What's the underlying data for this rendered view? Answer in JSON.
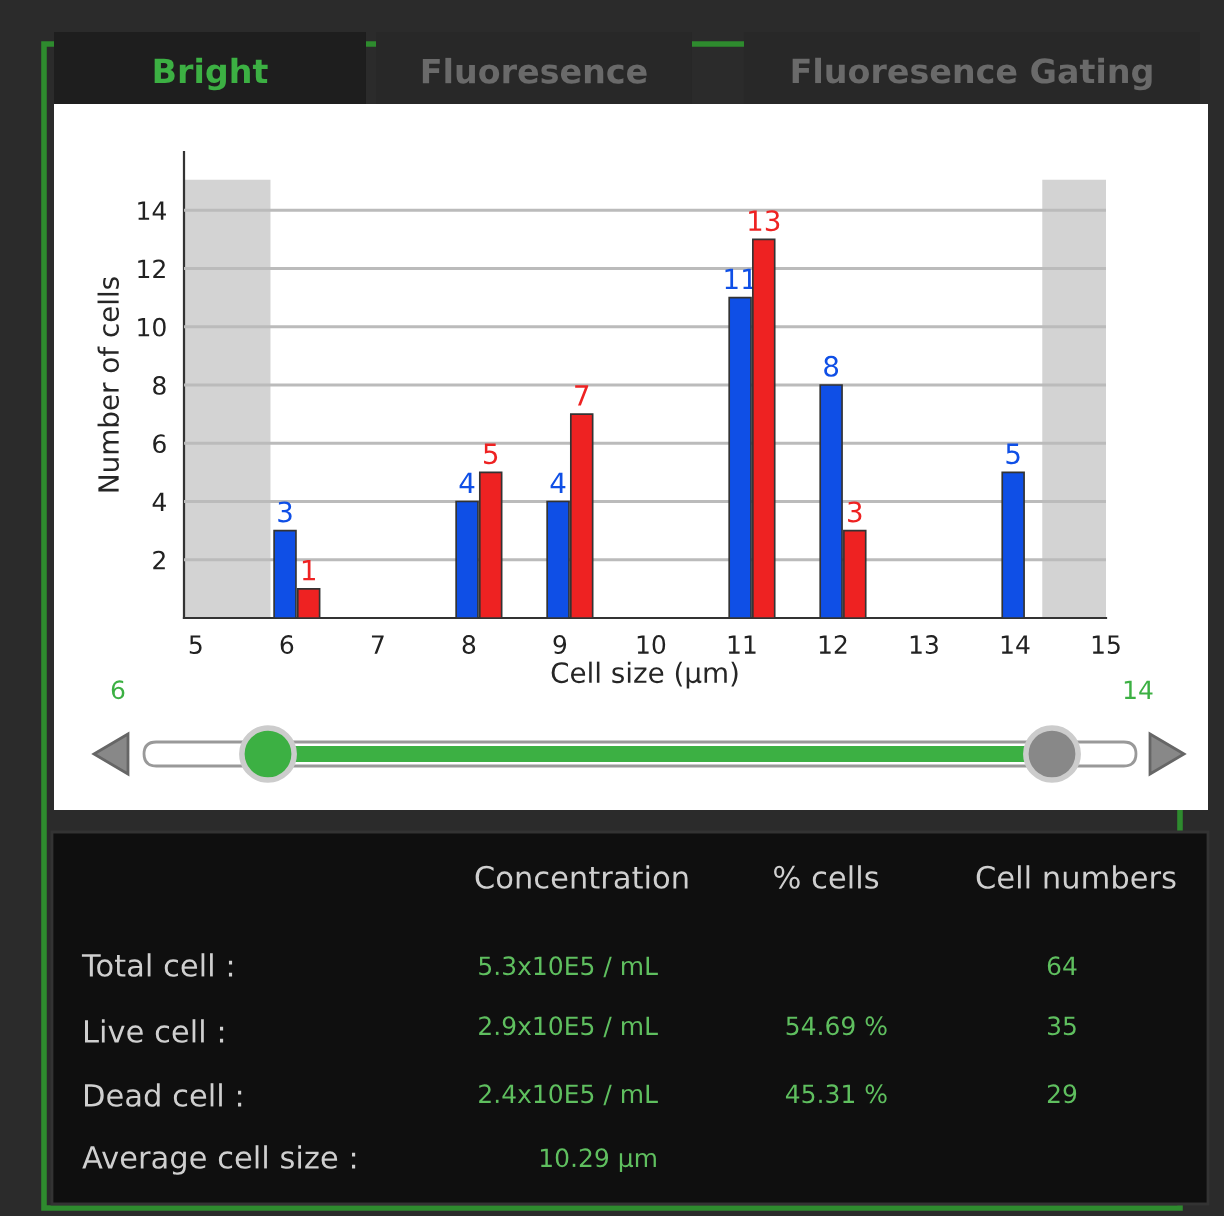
{
  "chart_data": {
    "type": "bar",
    "xlabel": "Cell size (µm)",
    "ylabel": "Number of cells",
    "x": [
      6,
      8,
      9,
      11,
      12,
      14
    ],
    "series": [
      {
        "color": "#0f4fe6",
        "values": [
          3,
          4,
          4,
          11,
          8,
          5
        ]
      },
      {
        "color": "#ee2222",
        "values": [
          1,
          5,
          7,
          13,
          3,
          null
        ]
      }
    ],
    "xlim": [
      4.87,
      15
    ],
    "xticks": [
      5,
      6,
      7,
      8,
      9,
      10,
      11,
      12,
      13,
      14,
      15
    ],
    "ylim": [
      0,
      16
    ],
    "yticks": [
      2,
      4,
      6,
      8,
      10,
      12,
      14
    ],
    "grid": "y",
    "data_labels": true,
    "bands": [
      {
        "axis": "x",
        "from": 4.87,
        "to": 5.82,
        "color": "#d3d3d3"
      },
      {
        "axis": "x",
        "from": 14.3,
        "to": 15,
        "color": "#d3d3d3"
      }
    ],
    "annotations": [
      "Bright",
      "Fluoresence",
      "Fluoresence Gating",
      "6",
      "14",
      "Concentration",
      "% cells",
      "Cell numbers",
      "Total cell :",
      "5.3x10E5 / mL",
      "64",
      "Live cell :",
      "2.9x10E5 / mL",
      "54.69 %",
      "35",
      "Dead cell :",
      "2.4x10E5 / mL",
      "45.31 %",
      "29",
      "Average cell size :",
      "10.29 µm"
    ]
  }
}
